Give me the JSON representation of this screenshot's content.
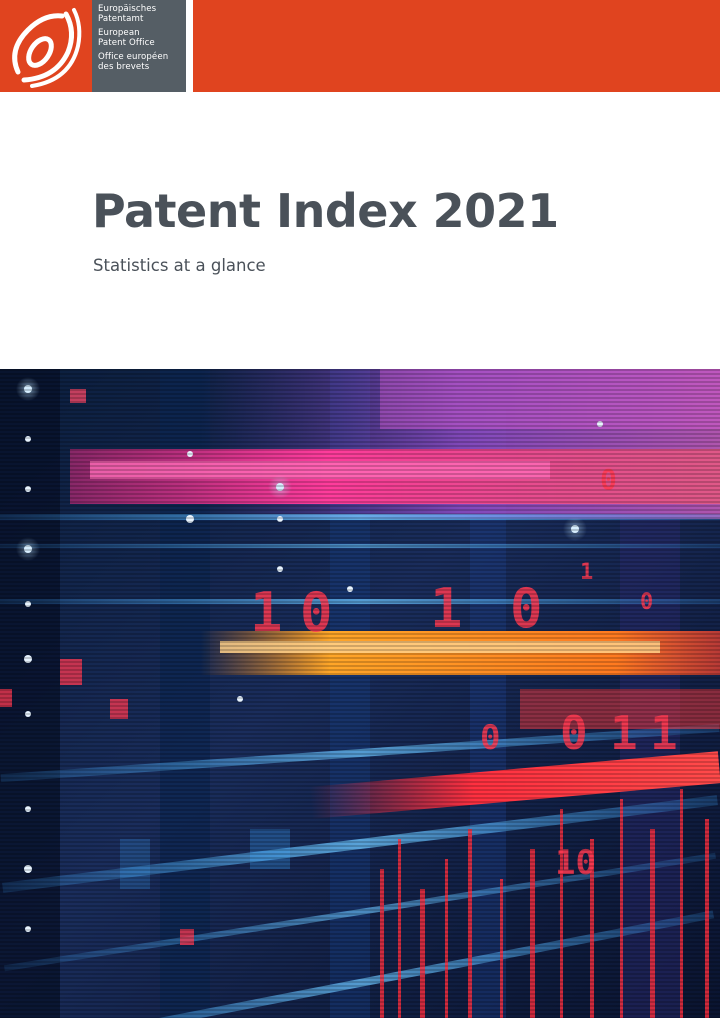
{
  "header": {
    "org_lines": [
      [
        "Europäisches",
        "Patentamt"
      ],
      [
        "European",
        "Patent Office"
      ],
      [
        "Office européen",
        "des brevets"
      ]
    ],
    "brand_color": "#e0441f",
    "name_block_color": "#555e65"
  },
  "cover": {
    "title": "Patent Index 2021",
    "subtitle": "Statistics at a glance",
    "title_color": "#4a5159"
  },
  "image": {
    "icon": "digital-data-streams-image",
    "digits": [
      "1",
      "0",
      "1",
      "0",
      "0",
      "1",
      "1",
      "0",
      "10",
      "0",
      "1",
      "0"
    ]
  }
}
